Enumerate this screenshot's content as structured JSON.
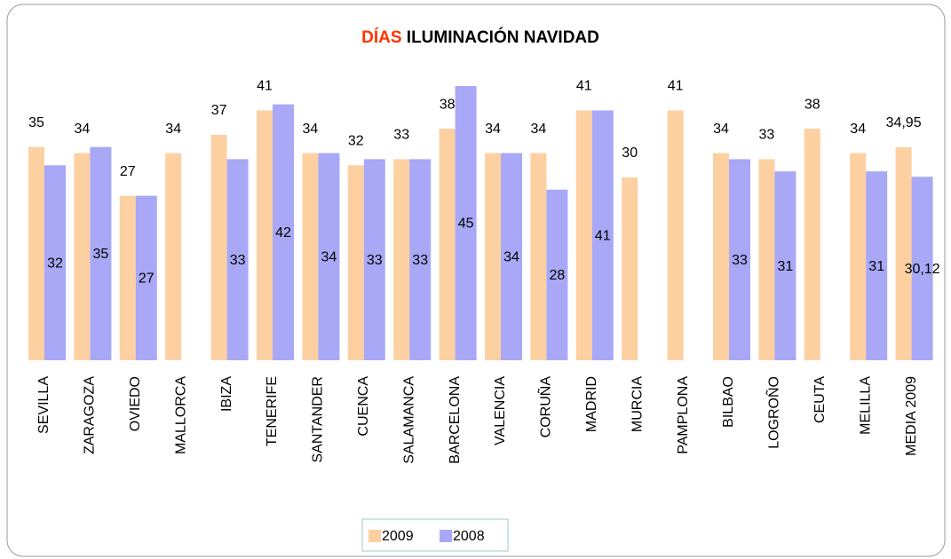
{
  "chart_data": {
    "type": "bar",
    "title_parts": [
      "DÍAS",
      "ILUMINACIÓN NAVIDAD"
    ],
    "title_colors": [
      "#ff3300",
      "#000000"
    ],
    "categories": [
      "SEVILLA",
      "ZARAGOZA",
      "OVIEDO",
      "MALLORCA",
      "IBIZA",
      "TENERIFE",
      "SANTANDER",
      "CUENCA",
      "SALAMANCA",
      "BARCELONA",
      "VALENCIA",
      "CORUÑA",
      "MADRID",
      "MURCIA",
      "PAMPLONA",
      "BILBAO",
      "LOGROÑO",
      "CEUTA",
      "MELILLA",
      "MEDIA 2009"
    ],
    "series": [
      {
        "name": "2009",
        "color": "#fdd0a2",
        "values": [
          35,
          34,
          27,
          34,
          37,
          41,
          34,
          32,
          33,
          38,
          34,
          34,
          41,
          30,
          41,
          34,
          33,
          38,
          34,
          34.95
        ],
        "value_labels": [
          "35",
          "34",
          "27",
          "34",
          "37",
          "41",
          "34",
          "32",
          "33",
          "38",
          "34",
          "34",
          "41",
          "30",
          "41",
          "34",
          "33",
          "38",
          "34",
          "34,95"
        ]
      },
      {
        "name": "2008",
        "color": "#a8a8f6",
        "values": [
          32,
          35,
          27,
          null,
          33,
          42,
          34,
          33,
          33,
          45,
          34,
          28,
          41,
          null,
          null,
          33,
          31,
          null,
          31,
          30.12
        ],
        "value_labels": [
          "32",
          "35",
          "27",
          null,
          "33",
          "42",
          "34",
          "33",
          "33",
          "45",
          "34",
          "28",
          "41",
          null,
          null,
          "33",
          "31",
          null,
          "31",
          "30,12"
        ]
      }
    ],
    "legend": "bottom"
  }
}
